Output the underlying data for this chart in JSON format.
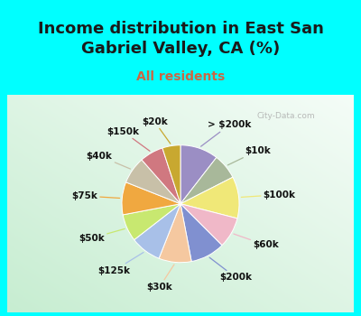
{
  "title": "Income distribution in East San\nGabriel Valley, CA (%)",
  "subtitle": "All residents",
  "bg_cyan": "#00FFFF",
  "slices": [
    {
      "label": "> $200k",
      "value": 10.5,
      "color": "#9B8EC4"
    },
    {
      "label": "$10k",
      "value": 7.0,
      "color": "#A8B89A"
    },
    {
      "label": "$100k",
      "value": 11.5,
      "color": "#F0E878"
    },
    {
      "label": "$60k",
      "value": 8.5,
      "color": "#F0B8C8"
    },
    {
      "label": "$200k",
      "value": 9.5,
      "color": "#8090D0"
    },
    {
      "label": "$30k",
      "value": 9.0,
      "color": "#F5C8A0"
    },
    {
      "label": "$125k",
      "value": 8.5,
      "color": "#A8C0E8"
    },
    {
      "label": "$50k",
      "value": 7.5,
      "color": "#C8E870"
    },
    {
      "label": "$75k",
      "value": 9.0,
      "color": "#F0A840"
    },
    {
      "label": "$40k",
      "value": 7.5,
      "color": "#C8C0A8"
    },
    {
      "label": "$150k",
      "value": 6.5,
      "color": "#D07880"
    },
    {
      "label": "$20k",
      "value": 5.0,
      "color": "#C8A830"
    }
  ],
  "title_fontsize": 13,
  "subtitle_fontsize": 10,
  "label_fontsize": 7.5,
  "title_color": "#1a1a1a",
  "subtitle_color": "#cc6644",
  "label_color": "#111111"
}
